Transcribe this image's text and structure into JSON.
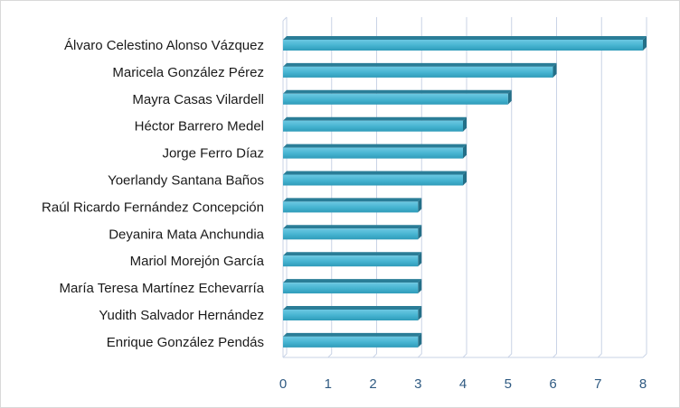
{
  "chart_data": {
    "type": "bar",
    "orientation": "horizontal",
    "categories": [
      "Álvaro Celestino Alonso Vázquez",
      "Maricela González Pérez",
      "Mayra Casas Vilardell",
      "Héctor Barrero Medel",
      "Jorge Ferro Díaz",
      "Yoerlandy Santana Baños",
      "Raúl Ricardo Fernández Concepción",
      "Deyanira Mata Anchundia",
      "Mariol Morejón García",
      "María Teresa Martínez Echevarría",
      "Yudith Salvador Hernández",
      "Enrique González Pendás"
    ],
    "values": [
      8,
      6,
      5,
      4,
      4,
      4,
      3,
      3,
      3,
      3,
      3,
      3
    ],
    "xlim": [
      0,
      8
    ],
    "xticks": [
      "0",
      "1",
      "2",
      "3",
      "4",
      "5",
      "6",
      "7",
      "8"
    ],
    "grid": "vertical",
    "bar_style": "3d",
    "colors": {
      "bar_front": "#45b3d0",
      "bar_top": "#2a7d97",
      "bar_side": "#246f87",
      "grid": "#c9d3e6",
      "tick_text": "#2f5a82",
      "category_text": "#1a1a1a"
    }
  }
}
